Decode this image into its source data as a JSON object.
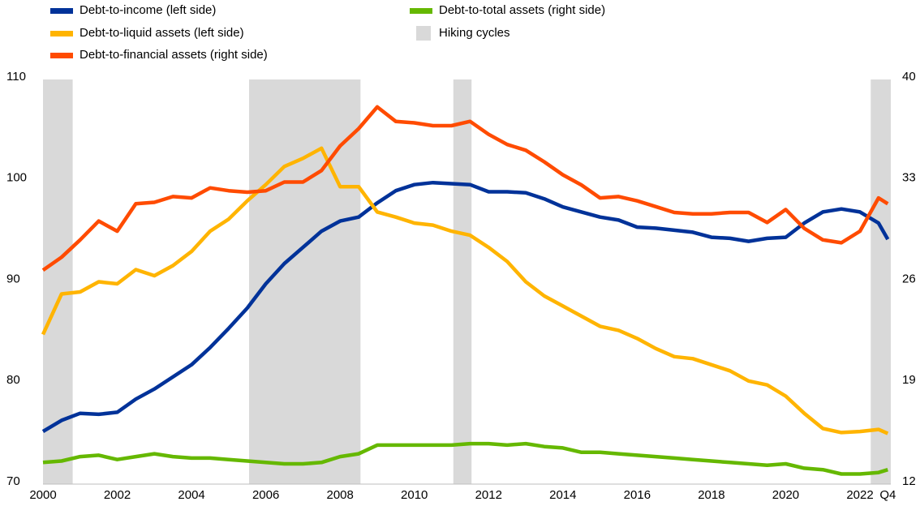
{
  "chart_data": {
    "type": "line",
    "x": [
      2000,
      2000.5,
      2001,
      2001.5,
      2002,
      2002.5,
      2003,
      2003.5,
      2004,
      2004.5,
      2005,
      2005.5,
      2006,
      2006.5,
      2007,
      2007.5,
      2008,
      2008.5,
      2009,
      2009.5,
      2010,
      2010.5,
      2011,
      2011.5,
      2012,
      2012.5,
      2013,
      2013.5,
      2014,
      2014.5,
      2015,
      2015.5,
      2016,
      2016.5,
      2017,
      2017.5,
      2018,
      2018.5,
      2019,
      2019.5,
      2020,
      2020.5,
      2021,
      2021.5,
      2022,
      2022.5,
      2022.75
    ],
    "series": [
      {
        "name": "Debt-to-income (left side)",
        "color": "#003299",
        "axis": "y",
        "values": [
          75.2,
          76.3,
          77.0,
          76.9,
          77.1,
          78.4,
          79.4,
          80.6,
          81.8,
          83.5,
          85.4,
          87.4,
          89.8,
          91.8,
          93.4,
          95.0,
          96.0,
          96.4,
          97.8,
          99.0,
          99.6,
          99.8,
          99.7,
          99.6,
          98.9,
          98.9,
          98.8,
          98.2,
          97.4,
          96.9,
          96.4,
          96.1,
          95.4,
          95.3,
          95.1,
          94.9,
          94.4,
          94.3,
          94.0,
          94.3,
          94.4,
          95.8,
          96.9,
          97.2,
          96.9,
          95.8,
          94.2
        ]
      },
      {
        "name": "Debt-to-liquid assets (left side)",
        "color": "#ffb400",
        "axis": "y",
        "values": [
          84.8,
          88.8,
          89.0,
          90.0,
          89.8,
          91.2,
          90.6,
          91.6,
          93.0,
          95.0,
          96.2,
          98.0,
          99.6,
          101.4,
          102.2,
          103.2,
          99.4,
          99.4,
          96.9,
          96.4,
          95.8,
          95.6,
          95.0,
          94.6,
          93.4,
          92.0,
          90.0,
          88.6,
          87.6,
          86.6,
          85.6,
          85.2,
          84.4,
          83.4,
          82.6,
          82.4,
          81.8,
          81.2,
          80.2,
          79.8,
          78.7,
          77.0,
          75.5,
          75.1,
          75.2,
          75.4,
          75.0
        ]
      },
      {
        "name": "Debt-to-financial assets (right side)",
        "color": "#ff4b00",
        "axis": "y2",
        "values": [
          26.8,
          27.7,
          28.9,
          30.2,
          29.5,
          31.4,
          31.5,
          31.9,
          31.8,
          32.5,
          32.3,
          32.2,
          32.3,
          32.9,
          32.9,
          33.7,
          35.4,
          36.6,
          38.1,
          37.1,
          37.0,
          36.8,
          36.8,
          37.1,
          36.2,
          35.5,
          35.1,
          34.3,
          33.4,
          32.7,
          31.8,
          31.9,
          31.6,
          31.2,
          30.8,
          30.7,
          30.7,
          30.8,
          30.8,
          30.1,
          31.0,
          29.7,
          28.9,
          28.7,
          29.5,
          31.8,
          31.4
        ]
      },
      {
        "name": "Debt-to-total assets (right side)",
        "color": "#65b800",
        "axis": "y2",
        "values": [
          13.5,
          13.6,
          13.9,
          14.0,
          13.7,
          13.9,
          14.1,
          13.9,
          13.8,
          13.8,
          13.7,
          13.6,
          13.5,
          13.4,
          13.4,
          13.5,
          13.9,
          14.1,
          14.7,
          14.7,
          14.7,
          14.7,
          14.7,
          14.8,
          14.8,
          14.7,
          14.8,
          14.6,
          14.5,
          14.2,
          14.2,
          14.1,
          14.0,
          13.9,
          13.8,
          13.7,
          13.6,
          13.5,
          13.4,
          13.3,
          13.4,
          13.1,
          13.0,
          12.7,
          12.7,
          12.8,
          13.0
        ]
      }
    ],
    "hiking_cycles": {
      "name": "Hiking cycles",
      "color": "#d9d9d9",
      "spans": [
        [
          2000,
          2000.8
        ],
        [
          2005.55,
          2008.55
        ],
        [
          2011.05,
          2011.54
        ],
        [
          2022.29,
          2022.83
        ]
      ]
    },
    "xlim": [
      2000,
      2022.83
    ],
    "xticks": [
      2000,
      2002,
      2004,
      2006,
      2008,
      2010,
      2012,
      2014,
      2016,
      2018,
      2020,
      2022,
      {
        "value": 2022.75,
        "label": "Q4"
      }
    ],
    "ylim": [
      70,
      110
    ],
    "yticks": [
      70,
      80,
      90,
      100,
      110
    ],
    "y2lim": [
      12,
      40
    ],
    "y2ticks": [
      12,
      19,
      26,
      33,
      40
    ],
    "grid": false
  }
}
